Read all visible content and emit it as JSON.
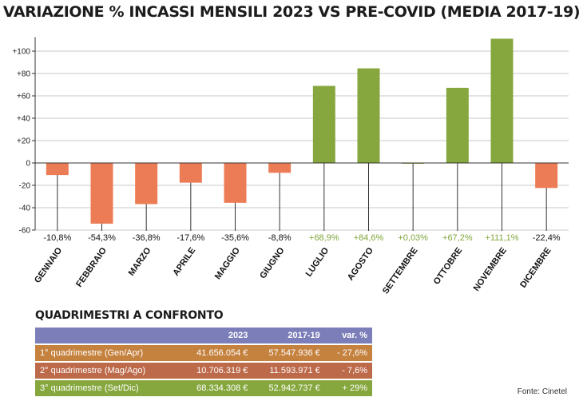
{
  "chart_data": {
    "type": "bar",
    "title": "VARIAZIONE % INCASSI MENSILI 2023 VS PRE-COVID (MEDIA 2017-19)",
    "categories": [
      "GENNAIO",
      "FEBBRAIO",
      "MARZO",
      "APRILE",
      "MAGGIO",
      "GIUGNO",
      "LUGLIO",
      "AGOSTO",
      "SETTEMBRE",
      "OTTOBRE",
      "NOVEMBRE",
      "DICEMBRE"
    ],
    "values": [
      -10.8,
      -54.3,
      -36.8,
      -17.6,
      -35.6,
      -8.8,
      68.9,
      84.6,
      0.03,
      67.2,
      111.1,
      -22.4
    ],
    "data_labels": [
      "-10,8%",
      "-54,3%",
      "-36,8%",
      "-17,6%",
      "-35,6%",
      "-8,8%",
      "+68,9%",
      "+84,6%",
      "+0,03%",
      "+67,2%",
      "+111,1%",
      "-22,4%"
    ],
    "yticks": [
      -60,
      -40,
      -20,
      0,
      20,
      40,
      60,
      80,
      100
    ],
    "ytick_labels": [
      "-60",
      "-40",
      "-20",
      "0",
      "+20",
      "+40",
      "+60",
      "+80",
      "+100"
    ],
    "ylim": [
      -60,
      111.1
    ],
    "grid": true,
    "colors": {
      "negative": "#ec7c55",
      "positive": "#86a73e",
      "negative_label": "#111111",
      "positive_label": "#7fa53a"
    }
  },
  "table": {
    "title": "QUADRIMESTRI A CONFRONTO",
    "headers": [
      "",
      "2023",
      "2017-19",
      "var. %"
    ],
    "rows": [
      {
        "label": "1° quadrimestre (Gen/Apr)",
        "v2023": "41.656.054 €",
        "v1719": "57.547.936 €",
        "var": "- 27,6%"
      },
      {
        "label": "2° quadrimestre (Mag/Ago)",
        "v2023": "10.706.319 €",
        "v1719": "11.593.971 €",
        "var": "- 7,6%"
      },
      {
        "label": "3° quadrimestre (Set/Dic)",
        "v2023": "68.334.308 €",
        "v1719": "52.942.737 €",
        "var": "+ 29%"
      }
    ]
  },
  "source": "Fonte: Cinetel"
}
